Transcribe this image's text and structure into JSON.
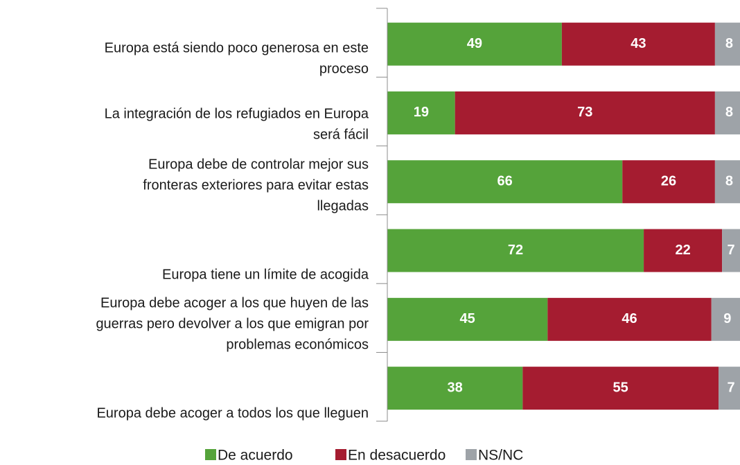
{
  "chart_data": {
    "type": "stacked-bar-horizontal",
    "categories": [
      [
        "Europa está siendo poco generosa en este",
        "proceso"
      ],
      [
        "La integración de los refugiados en Europa",
        "será fácil"
      ],
      [
        "Europa debe de controlar mejor sus",
        "fronteras exteriores para evitar estas",
        "llegadas"
      ],
      [
        "Europa tiene un límite de acogida"
      ],
      [
        "Europa debe acoger a los que huyen de las",
        "guerras pero devolver a los que emigran por",
        "problemas económicos"
      ],
      [
        "Europa debe acoger a todos los que lleguen"
      ]
    ],
    "series": [
      {
        "name": "De acuerdo",
        "color": "#55a33a",
        "values": [
          49,
          19,
          66,
          72,
          45,
          38
        ]
      },
      {
        "name": "En desacuerdo",
        "color": "#a51c30",
        "values": [
          43,
          73,
          26,
          22,
          46,
          55
        ]
      },
      {
        "name": "NS/NC",
        "color": "#9ea3a8",
        "values": [
          8,
          8,
          8,
          7,
          9,
          7
        ]
      }
    ],
    "xlim": [
      0,
      100
    ]
  }
}
